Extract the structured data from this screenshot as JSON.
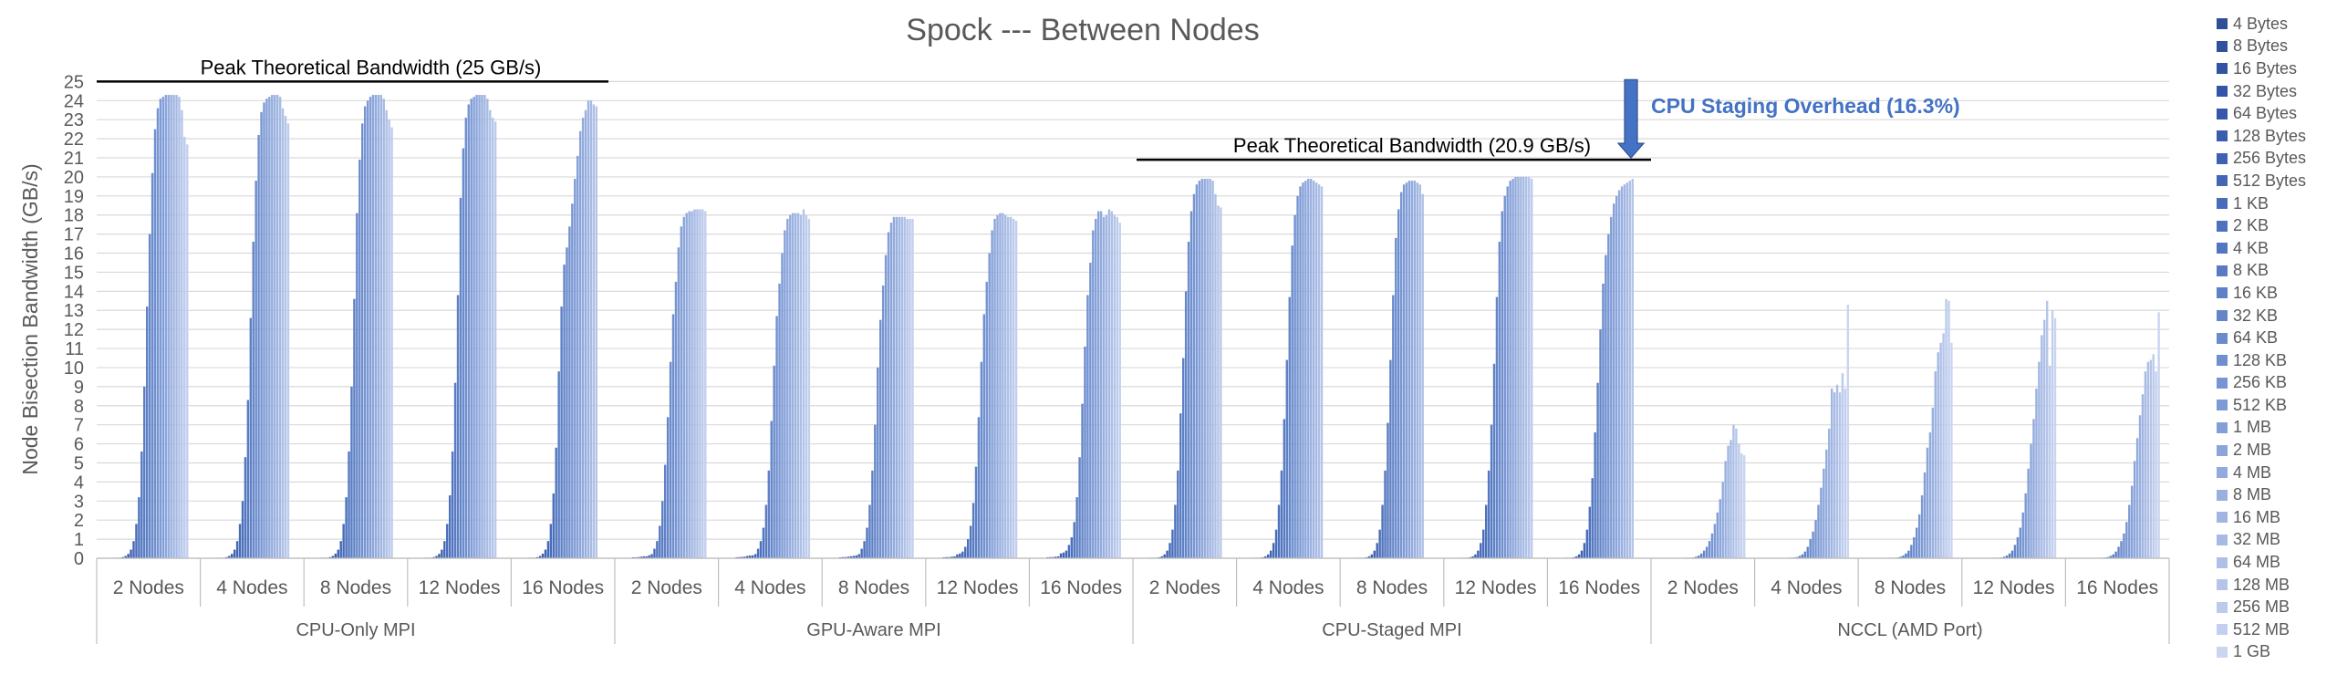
{
  "chart_data": {
    "type": "bar",
    "title": "Spock --- Between Nodes",
    "ylabel": "Node Bisection Bandwidth (GB/s)",
    "xlabel": "",
    "ylim": [
      0,
      25
    ],
    "yticks": [
      "0",
      "1",
      "2",
      "3",
      "4",
      "5",
      "6",
      "7",
      "8",
      "9",
      "10",
      "11",
      "12",
      "13",
      "14",
      "15",
      "16",
      "17",
      "18",
      "19",
      "20",
      "21",
      "22",
      "23",
      "24",
      "25"
    ],
    "grid": true,
    "legend_position": "right",
    "message_sizes": [
      "4 Bytes",
      "8 Bytes",
      "16 Bytes",
      "32 Bytes",
      "64 Bytes",
      "128 Bytes",
      "256 Bytes",
      "512 Bytes",
      "1 KB",
      "2 KB",
      "4 KB",
      "8 KB",
      "16 KB",
      "32 KB",
      "64 KB",
      "128 KB",
      "256 KB",
      "512 KB",
      "1 MB",
      "2 MB",
      "4 MB",
      "8 MB",
      "16 MB",
      "32 MB",
      "64 MB",
      "128 MB",
      "256 MB",
      "512 MB",
      "1 GB"
    ],
    "size_colors": [
      "#2f4f96",
      "#30519b",
      "#3153a0",
      "#3355a5",
      "#3658aa",
      "#3a5dae",
      "#3e62b2",
      "#4367b6",
      "#486cba",
      "#4d71bd",
      "#5276c0",
      "#587bc3",
      "#5e80c6",
      "#6486c9",
      "#6a8bcc",
      "#708fcf",
      "#7795d2",
      "#7d9ad5",
      "#849fd7",
      "#8ba5da",
      "#92aadd",
      "#99b0df",
      "#a0b5e2",
      "#a7bae4",
      "#aec0e7",
      "#b5c5e9",
      "#bccaec",
      "#c3cfee",
      "#cad5f0"
    ],
    "groups": [
      {
        "name": "CPU-Only MPI",
        "reference": {
          "label": "Peak Theoretical Bandwidth (25 GB/s)",
          "value": 25.0
        },
        "categories": [
          {
            "name": "2 Nodes",
            "values": [
              0.01,
              0.02,
              0.03,
              0.06,
              0.12,
              0.23,
              0.45,
              0.9,
              1.8,
              3.2,
              5.6,
              9.0,
              13.2,
              17.0,
              20.2,
              22.5,
              23.6,
              24.1,
              24.2,
              24.3,
              24.3,
              24.3,
              24.3,
              24.3,
              24.2,
              23.5,
              22.1,
              21.7,
              0
            ]
          },
          {
            "name": "4 Nodes",
            "values": [
              0.01,
              0.02,
              0.03,
              0.06,
              0.12,
              0.23,
              0.45,
              0.9,
              1.8,
              3.0,
              5.3,
              8.3,
              12.6,
              16.6,
              19.8,
              22.2,
              23.4,
              23.9,
              24.1,
              24.2,
              24.3,
              24.3,
              24.3,
              24.2,
              23.6,
              23.2,
              22.8,
              0,
              0
            ]
          },
          {
            "name": "8 Nodes",
            "values": [
              0.01,
              0.02,
              0.03,
              0.06,
              0.12,
              0.24,
              0.45,
              0.9,
              1.8,
              3.2,
              5.6,
              9.0,
              13.6,
              18.1,
              20.9,
              22.8,
              23.7,
              24.0,
              24.2,
              24.3,
              24.3,
              24.3,
              24.3,
              24.1,
              23.5,
              23.0,
              22.6,
              0,
              0
            ]
          },
          {
            "name": "12 Nodes",
            "values": [
              0.01,
              0.02,
              0.03,
              0.06,
              0.12,
              0.23,
              0.45,
              0.9,
              1.8,
              3.3,
              5.6,
              9.2,
              13.8,
              18.9,
              21.5,
              23.1,
              23.8,
              24.1,
              24.2,
              24.3,
              24.3,
              24.3,
              24.3,
              24.1,
              23.5,
              23.1,
              22.9,
              0,
              0
            ]
          },
          {
            "name": "16 Nodes",
            "values": [
              0.01,
              0.02,
              0.03,
              0.06,
              0.12,
              0.24,
              0.45,
              0.9,
              1.8,
              3.4,
              5.8,
              9.8,
              13.2,
              15.4,
              16.3,
              17.4,
              18.6,
              19.9,
              21.1,
              22.4,
              23.1,
              23.5,
              24.0,
              24.0,
              23.8,
              23.7,
              0,
              0,
              0
            ]
          }
        ]
      },
      {
        "name": "GPU-Aware MPI",
        "reference": null,
        "categories": [
          {
            "name": "2 Nodes",
            "values": [
              0.05,
              0.05,
              0.06,
              0.08,
              0.1,
              0.1,
              0.15,
              0.22,
              0.5,
              0.9,
              1.7,
              3.0,
              4.9,
              7.4,
              10.3,
              12.8,
              14.5,
              16.3,
              17.4,
              17.9,
              18.1,
              18.2,
              18.2,
              18.3,
              18.3,
              18.3,
              18.3,
              18.2,
              0
            ]
          },
          {
            "name": "4 Nodes",
            "values": [
              0.05,
              0.06,
              0.07,
              0.08,
              0.12,
              0.14,
              0.15,
              0.22,
              0.5,
              0.9,
              1.6,
              2.8,
              4.6,
              7.2,
              10.1,
              12.7,
              14.4,
              16.0,
              17.2,
              17.8,
              18.0,
              18.1,
              18.1,
              18.1,
              18.0,
              18.3,
              18.0,
              17.8,
              0
            ]
          },
          {
            "name": "8 Nodes",
            "values": [
              0.05,
              0.06,
              0.06,
              0.08,
              0.1,
              0.12,
              0.15,
              0.22,
              0.5,
              0.9,
              1.6,
              2.8,
              4.6,
              7.0,
              10.0,
              12.5,
              14.3,
              15.9,
              17.1,
              17.6,
              17.9,
              17.9,
              17.9,
              17.9,
              17.9,
              17.8,
              17.8,
              17.8,
              0
            ]
          },
          {
            "name": "12 Nodes",
            "values": [
              0.05,
              0.06,
              0.06,
              0.08,
              0.1,
              0.2,
              0.25,
              0.35,
              0.6,
              1.0,
              1.7,
              2.9,
              4.8,
              7.4,
              10.3,
              12.8,
              14.5,
              16.0,
              17.2,
              17.8,
              18.0,
              18.1,
              18.1,
              18.0,
              17.9,
              17.9,
              17.8,
              17.7,
              0
            ]
          },
          {
            "name": "16 Nodes",
            "values": [
              0.05,
              0.06,
              0.06,
              0.08,
              0.1,
              0.25,
              0.3,
              0.4,
              0.7,
              1.1,
              1.9,
              3.2,
              5.3,
              8.1,
              11.1,
              13.8,
              15.5,
              17.2,
              17.8,
              18.2,
              18.2,
              17.9,
              18.0,
              18.3,
              18.2,
              18.0,
              17.9,
              17.6,
              0
            ]
          }
        ]
      },
      {
        "name": "CPU-Staged MPI",
        "reference": {
          "label": "Peak Theoretical Bandwidth (20.9 GB/s)",
          "value": 20.9
        },
        "annotation": {
          "label": "CPU Staging Overhead (16.3%)",
          "color": "#4472c4"
        },
        "categories": [
          {
            "name": "2 Nodes",
            "values": [
              0.01,
              0.02,
              0.03,
              0.05,
              0.1,
              0.2,
              0.4,
              0.8,
              1.5,
              2.8,
              4.6,
              7.6,
              10.5,
              14.0,
              16.6,
              18.2,
              19.1,
              19.6,
              19.8,
              19.9,
              19.9,
              19.9,
              19.9,
              19.8,
              19.1,
              18.5,
              18.4,
              0,
              0
            ]
          },
          {
            "name": "4 Nodes",
            "values": [
              0.01,
              0.02,
              0.03,
              0.05,
              0.1,
              0.2,
              0.4,
              0.8,
              1.5,
              2.8,
              4.6,
              7.3,
              10.4,
              13.7,
              16.4,
              18.0,
              19.0,
              19.5,
              19.7,
              19.8,
              19.9,
              19.9,
              19.8,
              19.7,
              19.6,
              19.5,
              0,
              0,
              0
            ]
          },
          {
            "name": "8 Nodes",
            "values": [
              0.01,
              0.02,
              0.03,
              0.05,
              0.1,
              0.2,
              0.4,
              0.8,
              1.5,
              2.8,
              4.6,
              7.1,
              10.4,
              13.8,
              16.8,
              18.3,
              19.2,
              19.6,
              19.7,
              19.8,
              19.8,
              19.8,
              19.7,
              19.6,
              19.1,
              0,
              0,
              0,
              0
            ]
          },
          {
            "name": "12 Nodes",
            "values": [
              0.01,
              0.02,
              0.03,
              0.05,
              0.1,
              0.2,
              0.4,
              0.8,
              1.5,
              2.8,
              4.6,
              7.0,
              10.2,
              13.7,
              16.6,
              18.2,
              19.0,
              19.5,
              19.8,
              19.9,
              20.0,
              20.0,
              20.0,
              20.0,
              20.0,
              20.0,
              19.9,
              0,
              0
            ]
          },
          {
            "name": "16 Nodes",
            "values": [
              0.01,
              0.02,
              0.03,
              0.05,
              0.1,
              0.2,
              0.4,
              0.8,
              1.5,
              2.7,
              4.2,
              6.6,
              9.2,
              12.0,
              14.4,
              15.9,
              17.0,
              17.9,
              18.6,
              19.0,
              19.3,
              19.5,
              19.6,
              19.7,
              19.8,
              19.9,
              0,
              0,
              0
            ]
          }
        ]
      },
      {
        "name": "NCCL (AMD Port)",
        "reference": null,
        "categories": [
          {
            "name": "2 Nodes",
            "values": [
              0,
              0,
              0,
              0,
              0,
              0,
              0.01,
              0.01,
              0.02,
              0.04,
              0.08,
              0.14,
              0.25,
              0.4,
              0.6,
              0.9,
              1.3,
              1.8,
              2.4,
              3.1,
              4.0,
              5.1,
              5.9,
              6.2,
              7.0,
              6.8,
              6.0,
              5.5,
              5.4
            ]
          },
          {
            "name": "4 Nodes",
            "values": [
              0,
              0,
              0,
              0,
              0,
              0,
              0.01,
              0.02,
              0.04,
              0.06,
              0.12,
              0.2,
              0.35,
              0.6,
              1.0,
              1.4,
              2.0,
              2.8,
              3.7,
              4.7,
              5.7,
              6.8,
              8.9,
              8.7,
              9.1,
              8.7,
              9.7,
              8.9,
              13.3
            ]
          },
          {
            "name": "8 Nodes",
            "values": [
              0,
              0,
              0,
              0,
              0,
              0.01,
              0.01,
              0.02,
              0.04,
              0.08,
              0.14,
              0.25,
              0.4,
              0.7,
              1.1,
              1.6,
              2.3,
              3.3,
              4.5,
              5.8,
              6.6,
              7.9,
              9.8,
              10.8,
              11.3,
              11.8,
              13.6,
              13.5,
              11.3
            ]
          },
          {
            "name": "12 Nodes",
            "values": [
              0,
              0,
              0,
              0,
              0,
              0.01,
              0.01,
              0.02,
              0.04,
              0.08,
              0.14,
              0.25,
              0.4,
              0.7,
              1.1,
              1.6,
              2.4,
              3.4,
              4.7,
              6.0,
              7.3,
              8.9,
              10.3,
              11.7,
              12.5,
              13.5,
              10.1,
              13.0,
              12.6
            ]
          },
          {
            "name": "16 Nodes",
            "values": [
              0,
              0,
              0,
              0,
              0,
              0,
              0.01,
              0.02,
              0.04,
              0.06,
              0.12,
              0.2,
              0.35,
              0.6,
              0.9,
              1.3,
              1.9,
              2.8,
              3.8,
              5.1,
              6.3,
              7.5,
              8.6,
              9.8,
              10.3,
              10.4,
              10.7,
              9.8,
              12.9
            ]
          }
        ]
      }
    ]
  }
}
